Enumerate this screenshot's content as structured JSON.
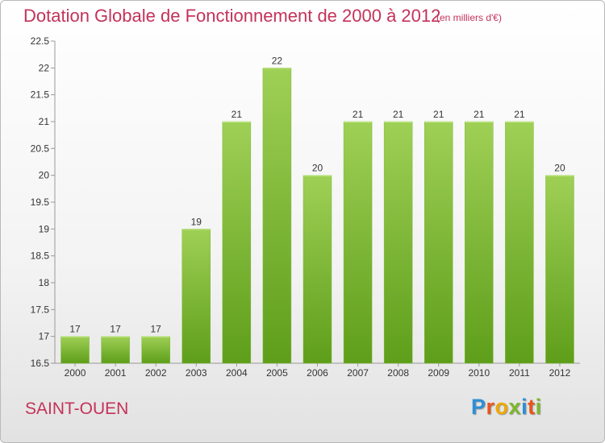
{
  "title": "Dotation Globale de Fonctionnement de 2000 à 2012",
  "subtitle": "(en milliers d'€)",
  "city": "SAINT-OUEN",
  "logo": {
    "letters": [
      "P",
      "r",
      "o",
      "x",
      "i",
      "t",
      "i"
    ],
    "colors": [
      "#2b8fd6",
      "#e8541e",
      "#f0a800",
      "#7cb72a",
      "#2b8fd6",
      "#e8541e",
      "#7cb72a"
    ]
  },
  "colors": {
    "title": "#c4325a",
    "bar_light": "#9fd056",
    "bar_dark": "#5e9e1a",
    "axis": "#999999",
    "grid": "#dddddd"
  },
  "chart_data": {
    "type": "bar",
    "title": "Dotation Globale de Fonctionnement de 2000 à 2012",
    "subtitle": "(en milliers d'€)",
    "xlabel": "",
    "ylabel": "",
    "categories": [
      "2000",
      "2001",
      "2002",
      "2003",
      "2004",
      "2005",
      "2006",
      "2007",
      "2008",
      "2009",
      "2010",
      "2011",
      "2012"
    ],
    "values": [
      17,
      17,
      17,
      19,
      21,
      22,
      20,
      21,
      21,
      21,
      21,
      21,
      20
    ],
    "data_labels": [
      "17",
      "17",
      "17",
      "19",
      "21",
      "22",
      "20",
      "21",
      "21",
      "21",
      "21",
      "21",
      "20"
    ],
    "ylim": [
      16.5,
      22.5
    ],
    "yticks": [
      16.5,
      17,
      17.5,
      18,
      18.5,
      19,
      19.5,
      20,
      20.5,
      21,
      21.5,
      22,
      22.5
    ],
    "ytick_labels": [
      "16.5",
      "17",
      "17.5",
      "18",
      "18.5",
      "19",
      "19.5",
      "20",
      "20.5",
      "21",
      "21.5",
      "22",
      "22.5"
    ],
    "grid": false,
    "legend": "none"
  }
}
